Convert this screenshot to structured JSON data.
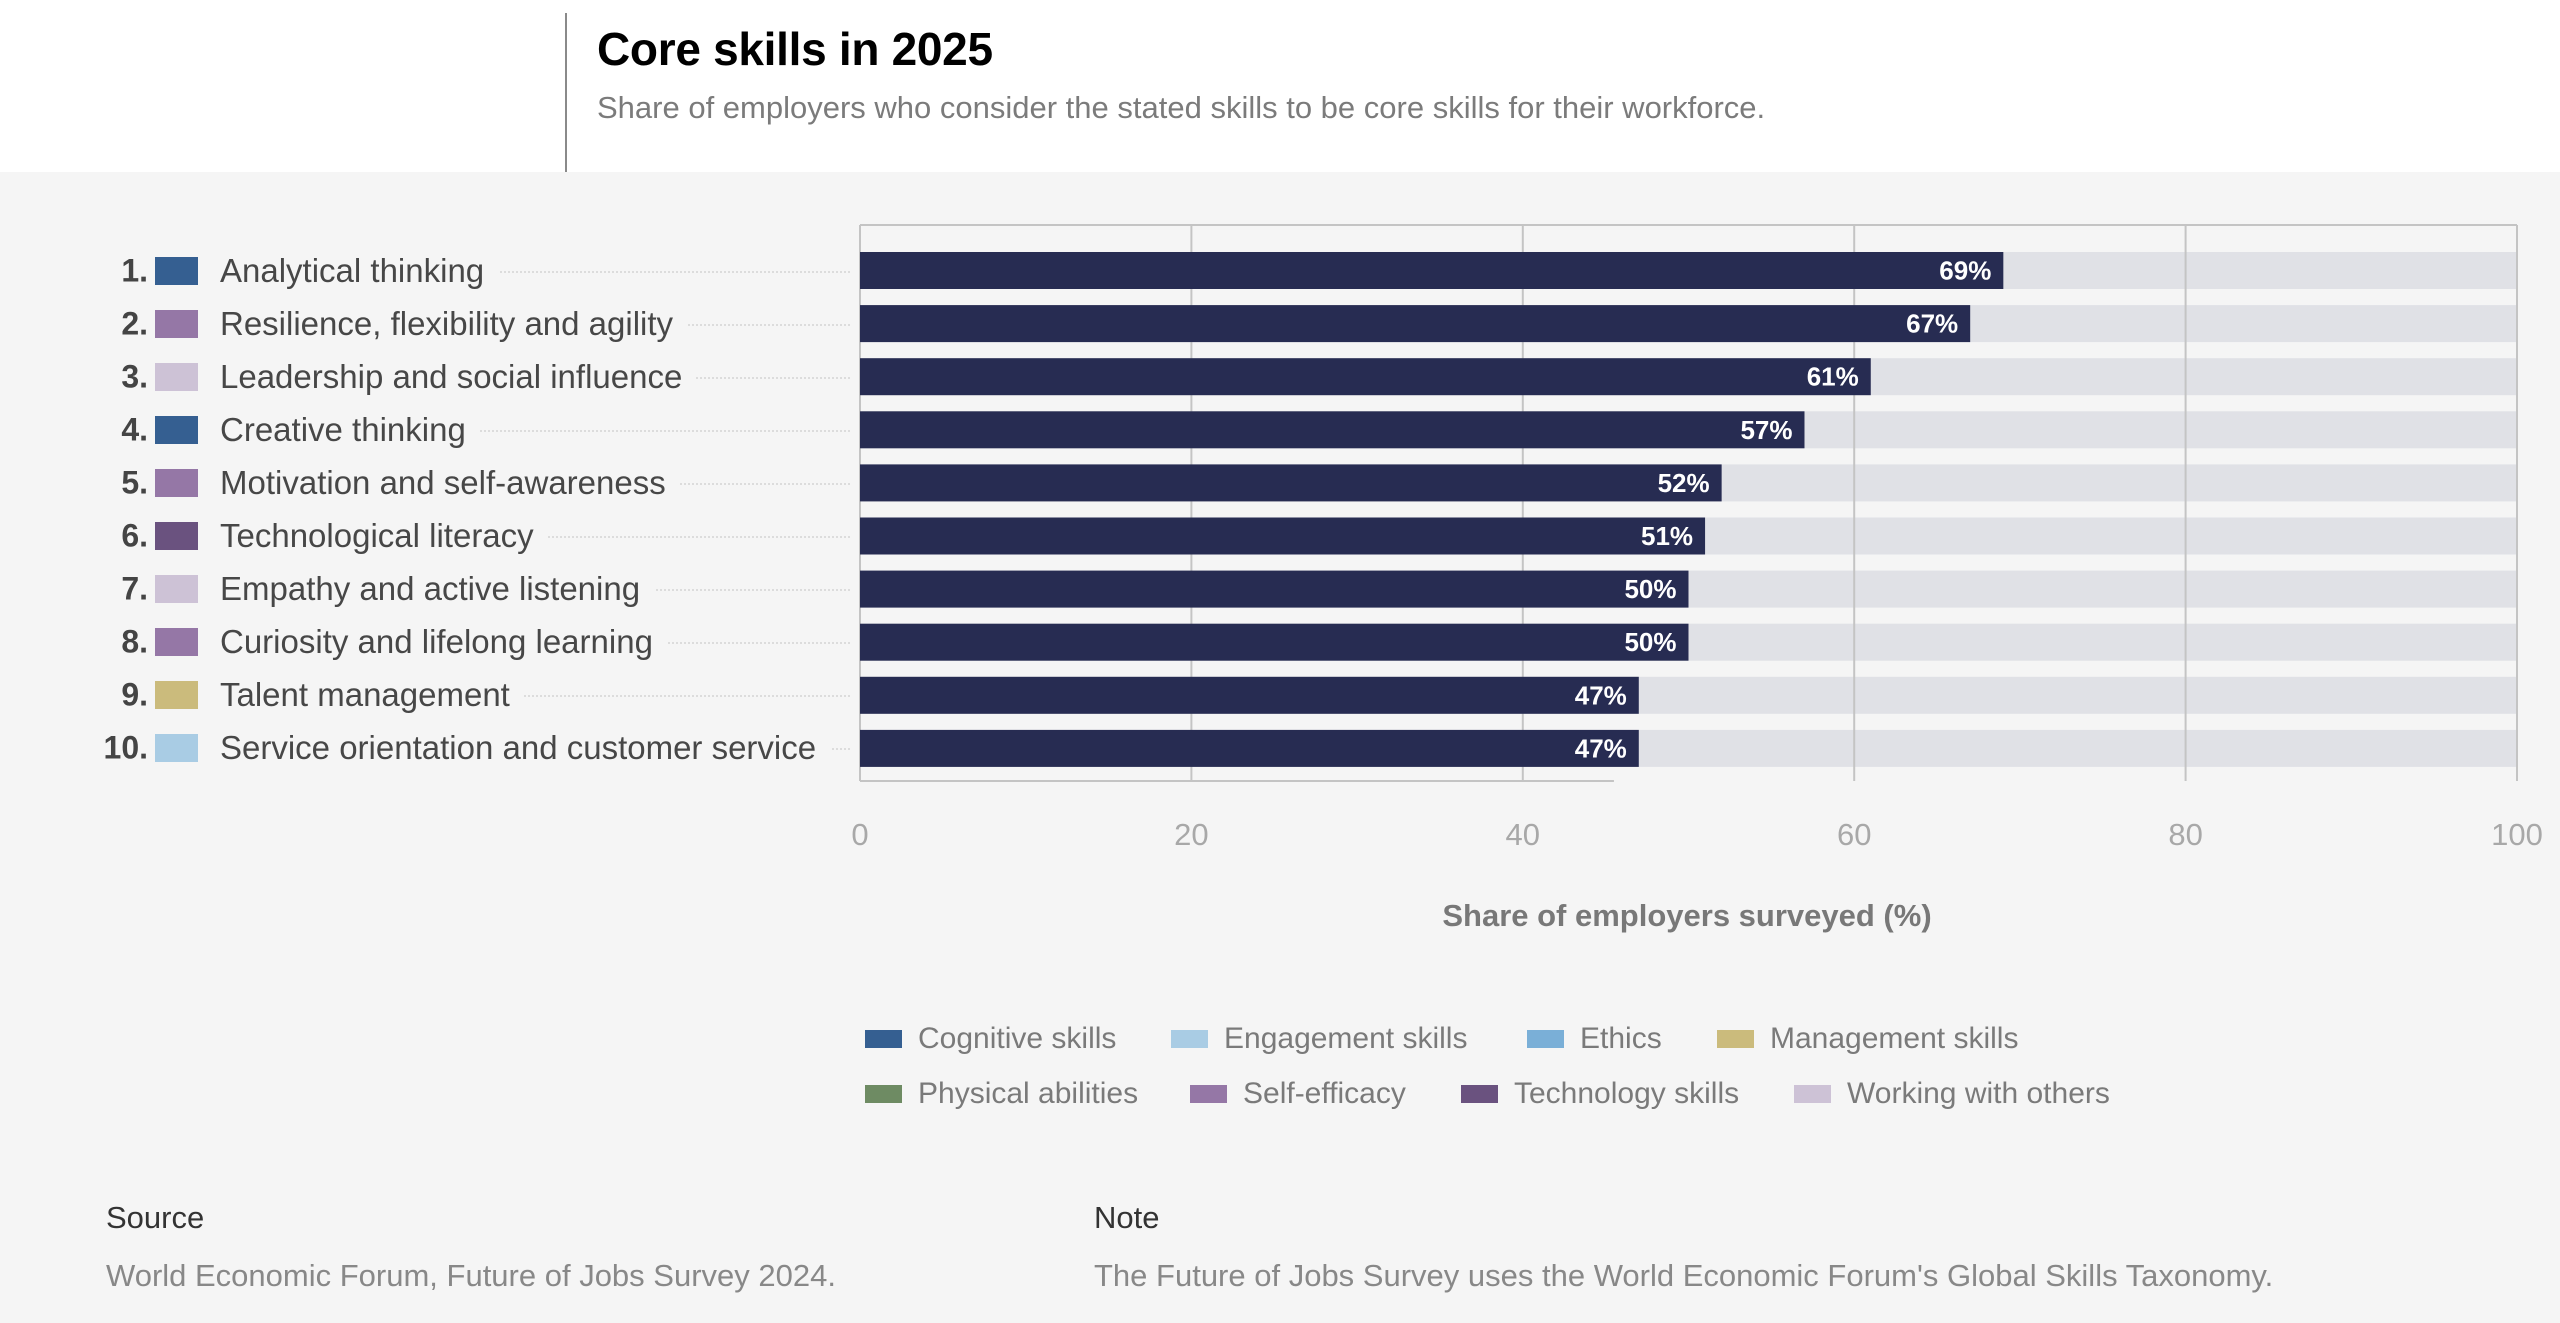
{
  "header": {
    "title": "Core skills in 2025",
    "subtitle": "Share of employers who consider the stated skills to be core skills for their workforce."
  },
  "categories": {
    "cognitive": {
      "label": "Cognitive skills",
      "color": "#355f91"
    },
    "engagement": {
      "label": "Engagement skills",
      "color": "#a9cce4"
    },
    "ethics": {
      "label": "Ethics",
      "color": "#7aafd7"
    },
    "management": {
      "label": "Management skills",
      "color": "#cbbb7c"
    },
    "physical": {
      "label": "Physical abilities",
      "color": "#6e8b63"
    },
    "self_efficacy": {
      "label": "Self-efficacy",
      "color": "#9577a6"
    },
    "technology": {
      "label": "Technology skills",
      "color": "#6a527f"
    },
    "working_with_others": {
      "label": "Working with others",
      "color": "#cdc2d6"
    }
  },
  "colors": {
    "bar": "#272c52",
    "track": "#e0e1e6",
    "grid": "#c4c4c4"
  },
  "chart_data": {
    "type": "bar",
    "orientation": "horizontal",
    "title": "Core skills in 2025",
    "subtitle": "Share of employers who consider the stated skills to be core skills for their workforce.",
    "xlabel": "Share of employers surveyed (%)",
    "ylabel": "",
    "xlim": [
      0,
      100
    ],
    "xticks": [
      0,
      20,
      40,
      60,
      80,
      100
    ],
    "grid": true,
    "legend_position": "bottom",
    "categories": [
      "Analytical thinking",
      "Resilience, flexibility and agility",
      "Leadership and social influence",
      "Creative thinking",
      "Motivation and self-awareness",
      "Technological literacy",
      "Empathy and active listening",
      "Curiosity and lifelong learning",
      "Talent management",
      "Service orientation and customer service"
    ],
    "ranks": [
      "1.",
      "2.",
      "3.",
      "4.",
      "5.",
      "6.",
      "7.",
      "8.",
      "9.",
      "10."
    ],
    "skill_category": [
      "cognitive",
      "self_efficacy",
      "working_with_others",
      "cognitive",
      "self_efficacy",
      "technology",
      "working_with_others",
      "self_efficacy",
      "management",
      "engagement"
    ],
    "values": [
      69,
      67,
      61,
      57,
      52,
      51,
      50,
      50,
      47,
      47
    ],
    "value_labels": [
      "69%",
      "67%",
      "61%",
      "57%",
      "52%",
      "51%",
      "50%",
      "50%",
      "47%",
      "47%"
    ],
    "legend": [
      "Cognitive skills",
      "Engagement skills",
      "Ethics",
      "Management skills",
      "Physical abilities",
      "Self-efficacy",
      "Technology skills",
      "Working with others"
    ]
  },
  "legend_order": [
    "cognitive",
    "engagement",
    "ethics",
    "management",
    "physical",
    "self_efficacy",
    "technology",
    "working_with_others"
  ],
  "footer": {
    "source_heading": "Source",
    "source_text": "World Economic Forum, Future of Jobs Survey 2024.",
    "note_heading": "Note",
    "note_text": "The Future of Jobs Survey uses the World Economic Forum's Global Skills Taxonomy."
  }
}
